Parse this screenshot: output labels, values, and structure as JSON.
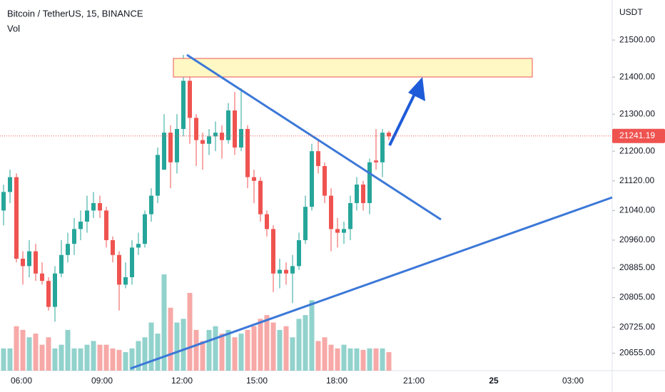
{
  "chart_data": {
    "type": "candlestick",
    "title": "Bitcoin / TetherUS, 15, BINANCE",
    "indicator": "Vol",
    "axis_unit": "USDT",
    "last_price": 21241.19,
    "last_price_label": "21241.19",
    "up_color": "#26a69a",
    "down_color": "#ef5350",
    "ylim": [
      20608,
      21608
    ],
    "yticks": [
      {
        "value": 21500,
        "label": "21500.00"
      },
      {
        "value": 21400,
        "label": "21400.00"
      },
      {
        "value": 21300,
        "label": "21300.00"
      },
      {
        "value": 21200,
        "label": "21200.00"
      },
      {
        "value": 21120,
        "label": "21120.00"
      },
      {
        "value": 21040,
        "label": "21040.00"
      },
      {
        "value": 20960,
        "label": "20960.00"
      },
      {
        "value": 20885,
        "label": "20885.00"
      },
      {
        "value": 20805,
        "label": "20805.00"
      },
      {
        "value": 20725,
        "label": "20725.00"
      },
      {
        "value": 20655,
        "label": "20655.00"
      }
    ],
    "xtick_labels": [
      "06:00",
      "09:00",
      "12:00",
      "15:00",
      "18:00",
      "21:00",
      "25",
      "03:00"
    ],
    "open": [
      21040,
      21090,
      21130,
      20910,
      20890,
      20930,
      20870,
      20850,
      20780,
      20870,
      20920,
      20950,
      20990,
      21010,
      21040,
      21060,
      21040,
      20960,
      20920,
      20840,
      20860,
      20940,
      20950,
      21030,
      21080,
      21150,
      21250,
      21170,
      21260,
      21390,
      21290,
      21230,
      21220,
      21240,
      21250,
      21230,
      21310,
      21210,
      21260,
      21130,
      21120,
      21030,
      20990,
      20870,
      20880,
      20870,
      20890,
      20960,
      21050,
      21200,
      21160,
      21080,
      20990,
      20980,
      20990,
      21060,
      21110,
      21060,
      21175,
      21170,
      21250
    ],
    "high": [
      21110,
      21150,
      21140,
      20930,
      20960,
      20950,
      20900,
      20860,
      20890,
      20960,
      20980,
      21020,
      21040,
      21080,
      21090,
      21080,
      21050,
      20970,
      20930,
      20900,
      20960,
      20980,
      21040,
      21100,
      21210,
      21300,
      21270,
      21300,
      21460,
      21400,
      21300,
      21250,
      21260,
      21280,
      21270,
      21330,
      21360,
      21370,
      21270,
      21150,
      21130,
      21040,
      21000,
      20910,
      20900,
      20920,
      20980,
      21080,
      21220,
      21230,
      21170,
      21100,
      21020,
      21010,
      21080,
      21130,
      21120,
      21180,
      21260,
      21260,
      21255
    ],
    "low": [
      21000,
      21060,
      20900,
      20840,
      20860,
      20850,
      20840,
      20770,
      20740,
      20860,
      20900,
      20920,
      20960,
      20980,
      21020,
      21020,
      20940,
      20900,
      20770,
      20830,
      20840,
      20920,
      20940,
      21010,
      21060,
      21160,
      21100,
      21140,
      21240,
      21220,
      21160,
      21150,
      21190,
      21200,
      21180,
      21220,
      21190,
      21200,
      21100,
      21060,
      21010,
      20970,
      20820,
      20830,
      20840,
      20790,
      20880,
      20950,
      21040,
      21140,
      21060,
      20930,
      20940,
      20950,
      20960,
      21040,
      21040,
      21030,
      21150,
      21130,
      21230
    ],
    "close": [
      21090,
      21130,
      20910,
      20890,
      20930,
      20870,
      20850,
      20780,
      20870,
      20920,
      20950,
      20990,
      21010,
      21040,
      21060,
      21040,
      20960,
      20920,
      20840,
      20860,
      20940,
      20950,
      21030,
      21080,
      21190,
      21250,
      21170,
      21260,
      21390,
      21290,
      21230,
      21220,
      21240,
      21250,
      21230,
      21310,
      21210,
      21260,
      21130,
      21120,
      21030,
      20990,
      20870,
      20880,
      20870,
      20890,
      20960,
      21050,
      21200,
      21160,
      21080,
      20990,
      20980,
      20990,
      21060,
      21110,
      21060,
      21170,
      21170,
      21250,
      21240
    ],
    "volume": [
      30,
      30,
      60,
      55,
      45,
      50,
      35,
      45,
      30,
      35,
      55,
      30,
      30,
      35,
      40,
      35,
      35,
      30,
      28,
      25,
      30,
      40,
      45,
      65,
      50,
      130,
      85,
      65,
      70,
      105,
      55,
      40,
      55,
      60,
      50,
      55,
      45,
      50,
      55,
      60,
      70,
      75,
      65,
      55,
      60,
      45,
      70,
      75,
      95,
      40,
      45,
      35,
      30,
      35,
      30,
      30,
      28,
      30,
      30,
      30,
      25
    ]
  }
}
